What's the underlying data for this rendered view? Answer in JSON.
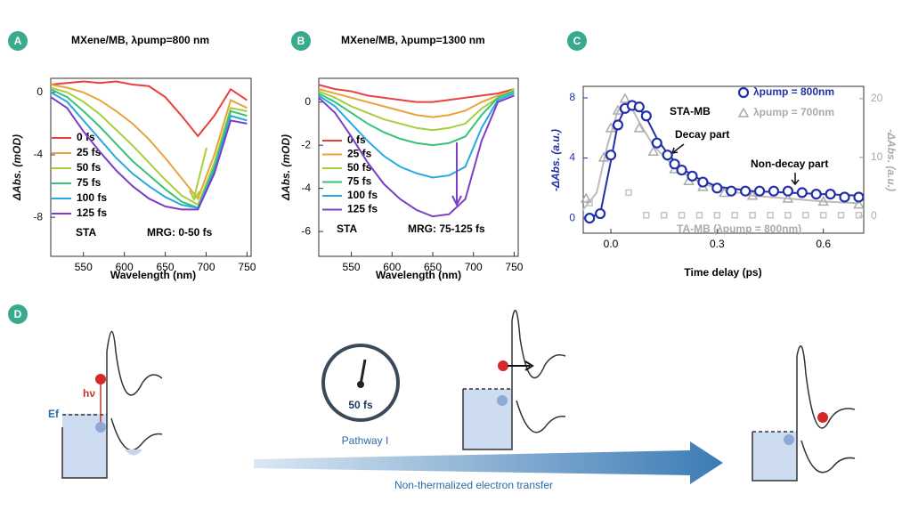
{
  "chart_data": [
    {
      "type": "line",
      "label": "A",
      "title": "MXene/MB, λpump=800 nm",
      "x_label": "Wavelength (nm)",
      "y_label": "ΔAbs. (mOD)",
      "x": [
        510,
        530,
        550,
        570,
        590,
        610,
        630,
        650,
        670,
        690,
        710,
        730,
        750
      ],
      "xlim": [
        510,
        755
      ],
      "ylim": [
        -10.5,
        0.9
      ],
      "xticks": [
        550,
        600,
        650,
        700,
        750
      ],
      "yticks": [
        0,
        -4,
        -8
      ],
      "series": [
        {
          "name": "0 fs",
          "color": "#e8403f",
          "values": [
            0.5,
            0.6,
            0.7,
            0.6,
            0.7,
            0.5,
            0.4,
            -0.3,
            -1.5,
            -2.8,
            -1.5,
            0.2,
            -0.5
          ]
        },
        {
          "name": "25 fs",
          "color": "#e8a33a",
          "values": [
            0.5,
            0.3,
            0,
            -0.5,
            -1.2,
            -2,
            -3,
            -4.2,
            -5.5,
            -6.8,
            -4,
            -0.5,
            -1
          ]
        },
        {
          "name": "50 fs",
          "color": "#a7cf3a",
          "values": [
            0.3,
            0,
            -0.6,
            -1.4,
            -2.4,
            -3.4,
            -4.5,
            -5.6,
            -6.6,
            -7.2,
            -4.5,
            -1,
            -1.2
          ]
        },
        {
          "name": "75 fs",
          "color": "#36c27a",
          "values": [
            0.2,
            -0.3,
            -1.2,
            -2.2,
            -3.3,
            -4.4,
            -5.3,
            -6.2,
            -7,
            -7.4,
            -4.8,
            -1.2,
            -1.5
          ]
        },
        {
          "name": "100 fs",
          "color": "#27a9e1",
          "values": [
            0,
            -0.6,
            -1.8,
            -3,
            -4.2,
            -5.2,
            -6,
            -6.7,
            -7.2,
            -7.4,
            -5,
            -1.5,
            -1.8
          ]
        },
        {
          "name": "125 fs",
          "color": "#7b3fc4",
          "values": [
            -0.3,
            -1,
            -2.5,
            -3.8,
            -5,
            -6,
            -6.8,
            -7.3,
            -7.5,
            -7.5,
            -5.2,
            -1.8,
            -2
          ]
        }
      ],
      "annotations": [
        "STA",
        "MRG: 0-50 fs"
      ]
    },
    {
      "type": "line",
      "label": "B",
      "title": "MXene/MB, λpump=1300 nm",
      "x_label": "Wavelength (nm)",
      "y_label": "ΔAbs. (mOD)",
      "x": [
        510,
        530,
        550,
        570,
        590,
        610,
        630,
        650,
        670,
        690,
        710,
        730,
        750
      ],
      "xlim": [
        510,
        755
      ],
      "ylim": [
        -7.15,
        1.1
      ],
      "xticks": [
        550,
        600,
        650,
        700,
        750
      ],
      "yticks": [
        0,
        -2,
        -4,
        -6
      ],
      "series": [
        {
          "name": "0 fs",
          "color": "#e8403f",
          "values": [
            0.8,
            0.6,
            0.5,
            0.3,
            0.2,
            0.1,
            0,
            0,
            0.1,
            0.2,
            0.3,
            0.4,
            0.6
          ]
        },
        {
          "name": "25 fs",
          "color": "#e8a33a",
          "values": [
            0.6,
            0.4,
            0.2,
            0,
            -0.2,
            -0.4,
            -0.6,
            -0.7,
            -0.6,
            -0.4,
            0,
            0.3,
            0.5
          ]
        },
        {
          "name": "50 fs",
          "color": "#a7cf3a",
          "values": [
            0.5,
            0.2,
            -0.2,
            -0.5,
            -0.8,
            -1,
            -1.2,
            -1.3,
            -1.2,
            -1,
            -0.3,
            0.2,
            0.6
          ]
        },
        {
          "name": "75 fs",
          "color": "#36c27a",
          "values": [
            0.4,
            0,
            -0.5,
            -1,
            -1.4,
            -1.7,
            -1.9,
            -2,
            -1.9,
            -1.6,
            -0.6,
            0.2,
            0.5
          ]
        },
        {
          "name": "100 fs",
          "color": "#27a9e1",
          "values": [
            0.3,
            -0.2,
            -1,
            -1.8,
            -2.5,
            -3,
            -3.3,
            -3.5,
            -3.4,
            -3,
            -1.2,
            0.1,
            0.4
          ]
        },
        {
          "name": "125 fs",
          "color": "#7b3fc4",
          "values": [
            0.2,
            -0.5,
            -1.6,
            -2.8,
            -3.8,
            -4.5,
            -5,
            -5.3,
            -5.2,
            -4.5,
            -1.8,
            0,
            0.3
          ]
        }
      ],
      "annotations": [
        "STA",
        "MRG: 75-125 fs"
      ]
    },
    {
      "type": "scatter",
      "label": "C",
      "x_label": "Time delay (ps)",
      "y_label": "-ΔAbs. (a.u.)",
      "y2_label": "-ΔAbs. (a.u.)",
      "xlim": [
        -0.078,
        0.714
      ],
      "ylim": [
        -1,
        8.77
      ],
      "y2lim": [
        -2.9,
        22.1
      ],
      "xticks": [
        {
          "value": 0,
          "label": "0.0"
        },
        0.3,
        0.6
      ],
      "yticks": [
        0,
        4,
        8
      ],
      "y2ticks": [
        0,
        10,
        20
      ],
      "series": [
        {
          "color": "#bbbbbb",
          "marker": "line",
          "axis": "y2",
          "x": [
            -0.08,
            -0.04,
            -0.01,
            0.02,
            0.05,
            0.08,
            0.12,
            0.16,
            0.2,
            0.26,
            0.32,
            0.4,
            0.5,
            0.6,
            0.7
          ],
          "values": [
            1,
            4,
            12,
            18,
            19.5,
            16,
            12,
            9.5,
            7.5,
            5.5,
            4.5,
            3.5,
            3,
            2.5,
            2.2
          ]
        },
        {
          "name": "TA-MB (λpump = 800nm)",
          "color": "#c4c4c4",
          "marker": "square",
          "x": [
            -0.06,
            0.05,
            0.1,
            0.15,
            0.2,
            0.25,
            0.3,
            0.35,
            0.4,
            0.45,
            0.5,
            0.55,
            0.6,
            0.65,
            0.7
          ],
          "values": [
            1.0,
            1.7,
            0.2,
            0.2,
            0.2,
            0.2,
            0.2,
            0.2,
            0.2,
            0.2,
            0.2,
            0.2,
            0.2,
            0.2,
            0.2
          ]
        },
        {
          "name": "λpump = 700nm",
          "color": "#aaaaaa",
          "marker": "triangle",
          "axis": "y2",
          "x": [
            -0.07,
            -0.02,
            0.0,
            0.02,
            0.04,
            0.08,
            0.12,
            0.18,
            0.22,
            0.26,
            0.32,
            0.4,
            0.5,
            0.6,
            0.7
          ],
          "values": [
            3,
            10,
            15,
            18,
            20,
            15,
            11,
            8,
            6,
            5,
            4,
            3.5,
            3,
            2.5,
            2
          ]
        },
        {
          "color": "#2230a8",
          "marker": "line",
          "x": [
            -0.07,
            -0.03,
            0,
            0.02,
            0.04,
            0.06,
            0.08,
            0.1,
            0.13,
            0.16,
            0.2,
            0.25,
            0.3,
            0.4,
            0.5,
            0.6,
            0.7
          ],
          "values": [
            0,
            0.3,
            3.8,
            6.3,
            7.3,
            7.5,
            7.3,
            6.7,
            5.3,
            4.3,
            3.3,
            2.6,
            2.1,
            1.8,
            1.7,
            1.6,
            1.5
          ]
        },
        {
          "name": "λpump = 800nm",
          "color": "#2230a8",
          "marker": "circle",
          "x": [
            -0.06,
            -0.03,
            0.0,
            0.02,
            0.04,
            0.06,
            0.08,
            0.1,
            0.13,
            0.16,
            0.18,
            0.2,
            0.23,
            0.26,
            0.3,
            0.34,
            0.38,
            0.42,
            0.46,
            0.5,
            0.54,
            0.58,
            0.62,
            0.66,
            0.7
          ],
          "values": [
            0,
            0.3,
            4.2,
            6.2,
            7.3,
            7.5,
            7.4,
            6.8,
            5.0,
            4.2,
            3.6,
            3.2,
            2.8,
            2.4,
            2.0,
            1.8,
            1.8,
            1.8,
            1.8,
            1.8,
            1.7,
            1.6,
            1.6,
            1.4,
            1.4
          ]
        }
      ],
      "annotations": [
        "STA-MB",
        "Decay part",
        "Non-decay part"
      ]
    }
  ],
  "panel_d": {
    "label": "D",
    "hv": "hν",
    "ef": "Ef",
    "clock": "50 fs",
    "pathway": "Pathway I",
    "arrow": "Non-thermalized electron transfer"
  }
}
